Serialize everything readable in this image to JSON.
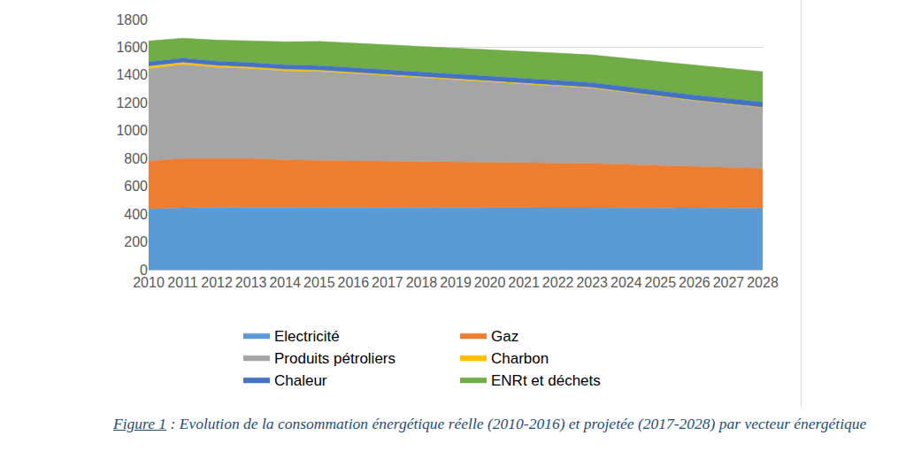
{
  "chart_data": {
    "type": "area",
    "stacked": true,
    "grid": true,
    "legend": "bottom",
    "caption_label": "Figure 1",
    "caption": " : Evolution de la consommation énergétique réelle (2010-2016) et projetée (2017-2028) par vecteur énergétique",
    "categories": [
      "2010",
      "2011",
      "2012",
      "2013",
      "2014",
      "2015",
      "2016",
      "2017",
      "2018",
      "2019",
      "2020",
      "2021",
      "2022",
      "2023",
      "2024",
      "2025",
      "2026",
      "2027",
      "2028"
    ],
    "series": [
      {
        "name": "Electricité",
        "color": "#5b9bd5",
        "values": [
          435,
          445,
          448,
          448,
          445,
          447,
          447,
          447,
          447,
          447,
          447,
          447,
          447,
          447,
          447,
          446,
          445,
          444,
          443
        ]
      },
      {
        "name": "Gaz",
        "color": "#ed7d31",
        "values": [
          345,
          355,
          352,
          352,
          345,
          338,
          335,
          333,
          331,
          328,
          325,
          323,
          321,
          318,
          310,
          304,
          297,
          291,
          285
        ]
      },
      {
        "name": "Produits pétroliers",
        "color": "#a5a5a5",
        "values": [
          665,
          675,
          655,
          645,
          640,
          640,
          628,
          615,
          602,
          590,
          578,
          565,
          552,
          540,
          518,
          495,
          473,
          455,
          437
        ]
      },
      {
        "name": "Charbon",
        "color": "#ffc000",
        "values": [
          18,
          15,
          13,
          12,
          11,
          10,
          9,
          8,
          7,
          7,
          6,
          6,
          5,
          5,
          4,
          4,
          3,
          3,
          2
        ]
      },
      {
        "name": "Chaleur",
        "color": "#4472c4",
        "values": [
          32,
          32,
          32,
          33,
          33,
          33,
          34,
          34,
          34,
          35,
          35,
          35,
          36,
          36,
          37,
          37,
          38,
          38,
          38
        ]
      },
      {
        "name": "ENRt et déchets",
        "color": "#70ad47",
        "values": [
          150,
          143,
          152,
          158,
          166,
          174,
          177,
          183,
          189,
          191,
          194,
          196,
          197,
          199,
          206,
          212,
          216,
          217,
          220
        ]
      }
    ],
    "ylim": [
      0,
      1800
    ],
    "yticks": [
      0,
      200,
      400,
      600,
      800,
      1000,
      1200,
      1400,
      1600,
      1800
    ]
  }
}
